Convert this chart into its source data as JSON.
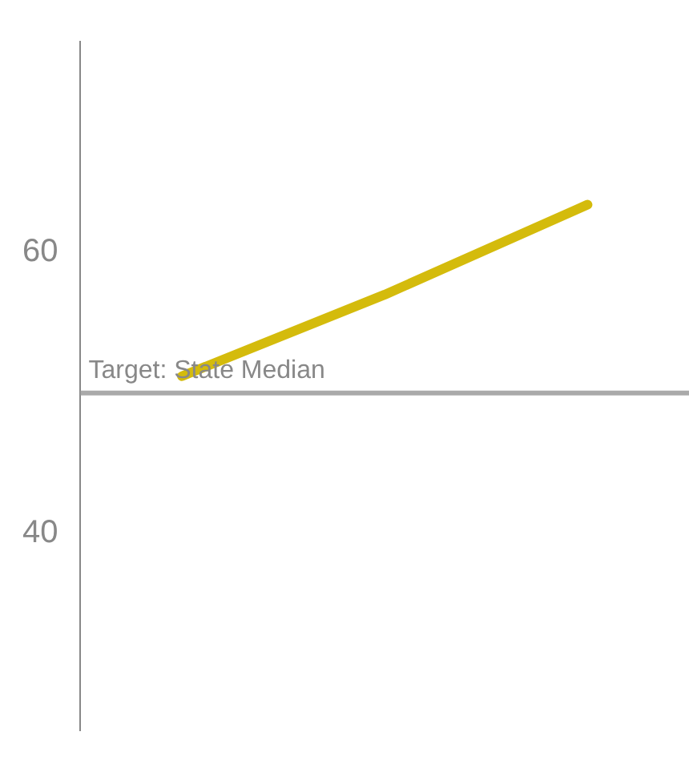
{
  "chart_data": {
    "type": "line",
    "categories": [
      null,
      null,
      null
    ],
    "series": [
      {
        "color": "#d4bb0c",
        "values": [
          51.2,
          57.0,
          63.4
        ]
      }
    ],
    "ylim": [
      26,
      75
    ],
    "yticks": [
      40,
      60
    ],
    "grid": false,
    "legend": false,
    "marker": "none",
    "line_style": "solid",
    "tick_labels": "y",
    "ref_lines": [
      {
        "axis": "y",
        "value": 50,
        "label": "Target: State Median",
        "color": "#aaaaaa"
      }
    ]
  }
}
